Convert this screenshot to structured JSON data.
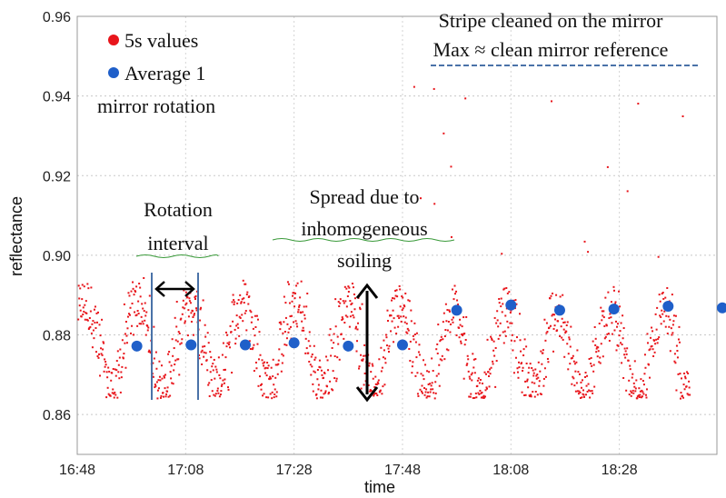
{
  "chart_data": {
    "type": "scatter",
    "xlabel": "time",
    "ylabel": "reflectance",
    "x_tick_labels": [
      "16:48",
      "17:08",
      "17:28",
      "17:48",
      "18:08",
      "18:28"
    ],
    "x_tick_minutes": [
      0,
      20,
      40,
      60,
      80,
      100
    ],
    "xlim_minutes": [
      0,
      118
    ],
    "ylim": [
      0.85,
      0.96
    ],
    "y_ticks": [
      0.86,
      0.88,
      0.9,
      0.92,
      0.94,
      0.96
    ],
    "y_tick_labels": [
      "0.86",
      "0.88",
      "0.90",
      "0.92",
      "0.94",
      "0.96"
    ],
    "grid": true,
    "legend_position": "top-left",
    "colors": {
      "five_s": "#e8151b",
      "average": "#1f5fc9",
      "marker_line": "#4a72a8",
      "arrow": "#000000",
      "dashed_ref": "#4a72a8"
    },
    "series": [
      {
        "name": "5s values",
        "note": "dense red points oscillating roughly between 0.865 and 0.892 from 16:48 to ~18:42, with excursions up to ~0.947 after 17:48"
      },
      {
        "name": "Average 1 mirror rotation",
        "x": [
          "16:59",
          "17:09",
          "17:19",
          "17:28",
          "17:38",
          "17:48",
          "17:58",
          "18:08",
          "18:17",
          "18:27",
          "18:37",
          "18:47"
        ],
        "y": [
          0.8772,
          0.8775,
          0.8775,
          0.878,
          0.8772,
          0.8775,
          0.8862,
          0.8875,
          0.8862,
          0.8865,
          0.8872,
          0.8868
        ]
      }
    ],
    "legend": [
      "5s values",
      "Average 1",
      "mirror rotation"
    ],
    "annotations": {
      "stripe_line1": "Stripe cleaned on the mirror",
      "stripe_line2": "Max ≈ clean mirror reference",
      "rotation_line1": "Rotation",
      "rotation_line2": "interval",
      "spread_line1": "Spread due to",
      "spread_line2": "inhomogeneous",
      "spread_line3": "soiling"
    }
  }
}
